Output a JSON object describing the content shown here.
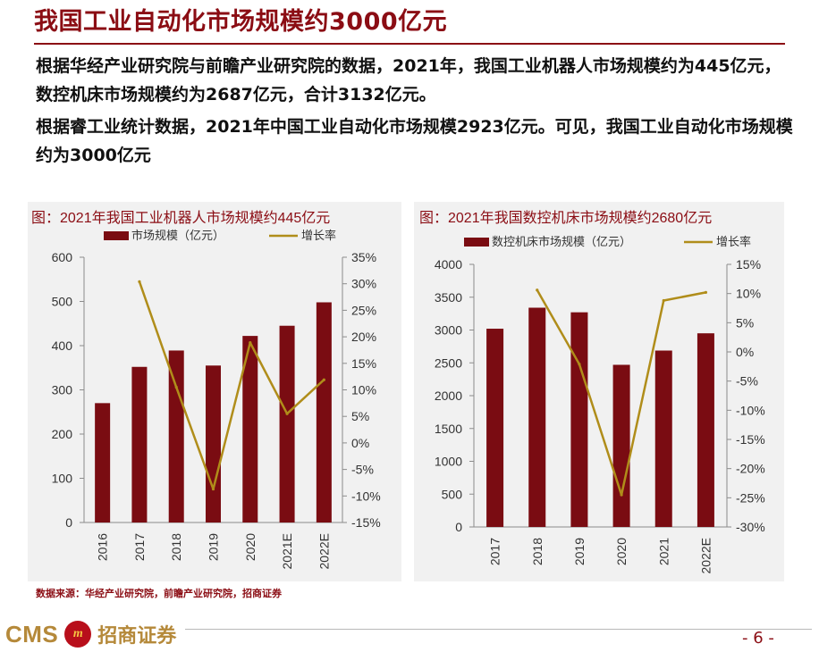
{
  "page": {
    "title": "我国工业自动化市场规模约3000亿元",
    "paragraph1": "根据华经产业研究院与前瞻产业研究院的数据，2021年，我国工业机器人市场规模约为445亿元，数控机床市场规模约为2687亿元，合计3132亿元。",
    "paragraph2": "根据睿工业统计数据，2021年中国工业自动化市场规模2923亿元。可见，我国工业自动化市场规模约为3000亿元",
    "source": "数据来源：华经产业研究院，前瞻产业研究院，招商证券",
    "page_number": "- 6 -"
  },
  "logo": {
    "cms": "CMS",
    "mark": "m",
    "name_cn": "招商证券"
  },
  "colors": {
    "title": "#8b0d14",
    "bar": "#7a0c12",
    "line": "#b08d1a",
    "panel_bg": "#f1f1f1"
  },
  "chart_data": [
    {
      "type": "bar",
      "title": "图：2021年我国工业机器人市场规模约445亿元",
      "categories": [
        "2016",
        "2017",
        "2018",
        "2019",
        "2020",
        "2021E",
        "2022E"
      ],
      "series": [
        {
          "name": "市场规模（亿元）",
          "type": "bar",
          "axis": "left",
          "values": [
            270,
            352,
            389,
            355,
            422,
            445,
            498
          ]
        },
        {
          "name": "增长率",
          "type": "line",
          "axis": "right",
          "values": [
            null,
            30.4,
            10.5,
            -8.7,
            18.9,
            5.5,
            11.9
          ]
        }
      ],
      "y_left": {
        "min": 0,
        "max": 600,
        "step": 100,
        "ticks": [
          "0",
          "100",
          "200",
          "300",
          "400",
          "500",
          "600"
        ]
      },
      "y_right": {
        "min": -15,
        "max": 35,
        "step": 5,
        "ticks": [
          "-15%",
          "-10%",
          "-5%",
          "0%",
          "5%",
          "10%",
          "15%",
          "20%",
          "25%",
          "30%",
          "35%"
        ]
      },
      "legend_position": "top"
    },
    {
      "type": "bar",
      "title": "图：2021年我国数控机床市场规模约2680亿元",
      "categories": [
        "2017",
        "2018",
        "2019",
        "2020",
        "2021",
        "2022E"
      ],
      "series": [
        {
          "name": "数控机床市场规模（亿元）",
          "type": "bar",
          "axis": "left",
          "values": [
            3020,
            3340,
            3270,
            2470,
            2687,
            2950
          ]
        },
        {
          "name": "增长率",
          "type": "line",
          "axis": "right",
          "values": [
            null,
            10.6,
            -2.1,
            -24.5,
            8.8,
            10.2
          ]
        }
      ],
      "y_left": {
        "min": 0,
        "max": 4000,
        "step": 500,
        "ticks": [
          "0",
          "500",
          "1000",
          "1500",
          "2000",
          "2500",
          "3000",
          "3500",
          "4000"
        ]
      },
      "y_right": {
        "min": -30,
        "max": 15,
        "step": 5,
        "ticks": [
          "-30%",
          "-25%",
          "-20%",
          "-15%",
          "-10%",
          "-5%",
          "0%",
          "5%",
          "10%",
          "15%"
        ]
      },
      "legend_position": "top"
    }
  ]
}
